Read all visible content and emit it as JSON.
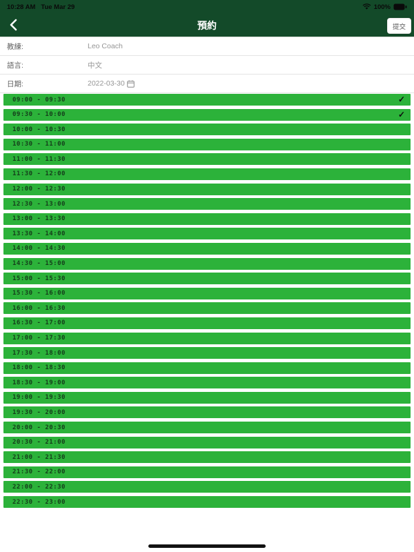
{
  "status_bar": {
    "time": "10:28 AM",
    "date": "Tue Mar 29",
    "battery_percent": "100%",
    "icons": [
      "wifi-icon",
      "battery-icon"
    ]
  },
  "nav": {
    "title": "預約",
    "back_icon": "chevron-left",
    "submit_label": "提交"
  },
  "form": {
    "rows": [
      {
        "label": "教練:",
        "value": "Leo Coach",
        "icon": null
      },
      {
        "label": "語言:",
        "value": "中文",
        "icon": null
      },
      {
        "label": "日期:",
        "value": "2022-03-30",
        "icon": "calendar-icon"
      }
    ]
  },
  "slots": [
    {
      "label": "09:00 - 09:30",
      "selected": true
    },
    {
      "label": "09:30 - 10:00",
      "selected": true
    },
    {
      "label": "10:00 - 10:30",
      "selected": false
    },
    {
      "label": "10:30 - 11:00",
      "selected": false
    },
    {
      "label": "11:00 - 11:30",
      "selected": false
    },
    {
      "label": "11:30 - 12:00",
      "selected": false
    },
    {
      "label": "12:00 - 12:30",
      "selected": false
    },
    {
      "label": "12:30 - 13:00",
      "selected": false
    },
    {
      "label": "13:00 - 13:30",
      "selected": false
    },
    {
      "label": "13:30 - 14:00",
      "selected": false
    },
    {
      "label": "14:00 - 14:30",
      "selected": false
    },
    {
      "label": "14:30 - 15:00",
      "selected": false
    },
    {
      "label": "15:00 - 15:30",
      "selected": false
    },
    {
      "label": "15:30 - 16:00",
      "selected": false
    },
    {
      "label": "16:00 - 16:30",
      "selected": false
    },
    {
      "label": "16:30 - 17:00",
      "selected": false
    },
    {
      "label": "17:00 - 17:30",
      "selected": false
    },
    {
      "label": "17:30 - 18:00",
      "selected": false
    },
    {
      "label": "18:00 - 18:30",
      "selected": false
    },
    {
      "label": "18:30 - 19:00",
      "selected": false
    },
    {
      "label": "19:00 - 19:30",
      "selected": false
    },
    {
      "label": "19:30 - 20:00",
      "selected": false
    },
    {
      "label": "20:00 - 20:30",
      "selected": false
    },
    {
      "label": "20:30 - 21:00",
      "selected": false
    },
    {
      "label": "21:00 - 21:30",
      "selected": false
    },
    {
      "label": "21:30 - 22:00",
      "selected": false
    },
    {
      "label": "22:00 - 22:30",
      "selected": false
    },
    {
      "label": "22:30 - 23:00",
      "selected": false
    }
  ],
  "check_glyph": "✓",
  "colors": {
    "header_green": "#134a29",
    "slot_green": "#2cb23a",
    "slot_text": "#143d1a",
    "check_black": "#0c0c0c"
  }
}
